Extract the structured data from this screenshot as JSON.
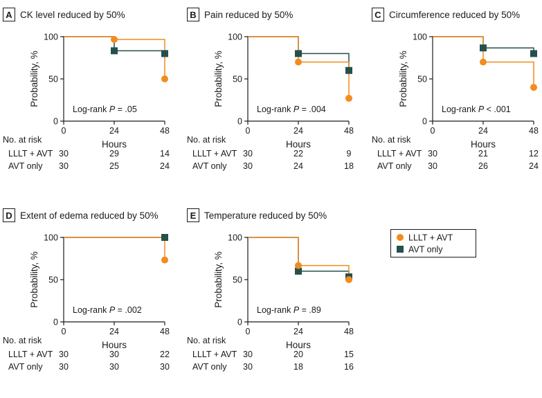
{
  "colors": {
    "lllt_avt": "#f28c1e",
    "avt_only": "#25504c",
    "axis": "#1a1a1a",
    "text": "#1a1a1a"
  },
  "shared": {
    "ylabel": "Probability, %",
    "xlabel": "Hours",
    "risk_title": "No. at risk",
    "risk_row1": "LLLT + AVT",
    "risk_row2": "AVT only"
  },
  "legend": {
    "items": [
      {
        "name": "LLLT + AVT",
        "color": "#f28c1e",
        "marker": "circle"
      },
      {
        "name": "AVT only",
        "color": "#25504c",
        "marker": "square"
      }
    ]
  },
  "chart_data": [
    {
      "panel": "A",
      "type": "line",
      "title": "CK level reduced by 50%",
      "xlabel": "Hours",
      "ylabel": "Probability, %",
      "x_ticks": [
        0,
        24,
        48
      ],
      "y_ticks": [
        0,
        50,
        100
      ],
      "xlim": [
        0,
        48
      ],
      "ylim": [
        0,
        100
      ],
      "annotation": {
        "prefix": "Log-rank ",
        "p": "P",
        "value": " = .05"
      },
      "series": [
        {
          "name": "LLLT + AVT",
          "marker": "circle",
          "x": [
            0,
            24,
            48
          ],
          "y": [
            100,
            96.7,
            50
          ]
        },
        {
          "name": "AVT only",
          "marker": "square",
          "x": [
            0,
            24,
            48
          ],
          "y": [
            100,
            83.3,
            80
          ]
        }
      ],
      "at_risk": {
        "LLLT + AVT": [
          "30",
          "29",
          "14"
        ],
        "AVT only": [
          "30",
          "25",
          "24"
        ]
      }
    },
    {
      "panel": "B",
      "type": "line",
      "title": "Pain reduced by 50%",
      "xlabel": "Hours",
      "ylabel": "Probability, %",
      "x_ticks": [
        0,
        24,
        48
      ],
      "y_ticks": [
        0,
        50,
        100
      ],
      "xlim": [
        0,
        48
      ],
      "ylim": [
        0,
        100
      ],
      "annotation": {
        "prefix": "Log-rank ",
        "p": "P",
        "value": " = .004"
      },
      "series": [
        {
          "name": "LLLT + AVT",
          "marker": "circle",
          "x": [
            0,
            24,
            48
          ],
          "y": [
            100,
            70,
            27
          ]
        },
        {
          "name": "AVT only",
          "marker": "square",
          "x": [
            0,
            24,
            48
          ],
          "y": [
            100,
            80,
            60
          ]
        }
      ],
      "at_risk": {
        "LLLT + AVT": [
          "30",
          "22",
          "9"
        ],
        "AVT only": [
          "30",
          "24",
          "18"
        ]
      }
    },
    {
      "panel": "C",
      "type": "line",
      "title": "Circumference reduced by 50%",
      "xlabel": "Hours",
      "ylabel": "Probability, %",
      "x_ticks": [
        0,
        24,
        48
      ],
      "y_ticks": [
        0,
        50,
        100
      ],
      "xlim": [
        0,
        48
      ],
      "ylim": [
        0,
        100
      ],
      "annotation": {
        "prefix": "Log-rank ",
        "p": "P",
        "value": " < .001"
      },
      "series": [
        {
          "name": "LLLT + AVT",
          "marker": "circle",
          "x": [
            0,
            24,
            48
          ],
          "y": [
            100,
            70,
            40
          ]
        },
        {
          "name": "AVT only",
          "marker": "square",
          "x": [
            0,
            24,
            48
          ],
          "y": [
            100,
            86.7,
            80
          ]
        }
      ],
      "at_risk": {
        "LLLT + AVT": [
          "30",
          "21",
          "12"
        ],
        "AVT only": [
          "30",
          "26",
          "24"
        ]
      }
    },
    {
      "panel": "D",
      "type": "line",
      "title": "Extent of edema reduced by 50%",
      "xlabel": "Hours",
      "ylabel": "Probability, %",
      "x_ticks": [
        0,
        24,
        48
      ],
      "y_ticks": [
        0,
        50,
        100
      ],
      "xlim": [
        0,
        48
      ],
      "ylim": [
        0,
        100
      ],
      "annotation": {
        "prefix": "Log-rank ",
        "p": "P",
        "value": " = .002"
      },
      "series": [
        {
          "name": "LLLT + AVT",
          "marker": "circle",
          "x": [
            0,
            48
          ],
          "y": [
            100,
            73.3
          ]
        },
        {
          "name": "AVT only",
          "marker": "square",
          "x": [
            0,
            48
          ],
          "y": [
            100,
            100
          ]
        }
      ],
      "at_risk": {
        "LLLT + AVT": [
          "30",
          "30",
          "22"
        ],
        "AVT only": [
          "30",
          "30",
          "30"
        ]
      }
    },
    {
      "panel": "E",
      "type": "line",
      "title": "Temperature reduced by 50%",
      "xlabel": "Hours",
      "ylabel": "Probability, %",
      "x_ticks": [
        0,
        24,
        48
      ],
      "y_ticks": [
        0,
        50,
        100
      ],
      "xlim": [
        0,
        48
      ],
      "ylim": [
        0,
        100
      ],
      "annotation": {
        "prefix": "Log-rank ",
        "p": "P",
        "value": " = .89"
      },
      "series": [
        {
          "name": "LLLT + AVT",
          "marker": "circle",
          "x": [
            0,
            24,
            48
          ],
          "y": [
            100,
            66.7,
            50
          ]
        },
        {
          "name": "AVT only",
          "marker": "square",
          "x": [
            0,
            24,
            48
          ],
          "y": [
            100,
            60,
            53.3
          ]
        }
      ],
      "at_risk": {
        "LLLT + AVT": [
          "30",
          "20",
          "15"
        ],
        "AVT only": [
          "30",
          "18",
          "16"
        ]
      }
    }
  ]
}
